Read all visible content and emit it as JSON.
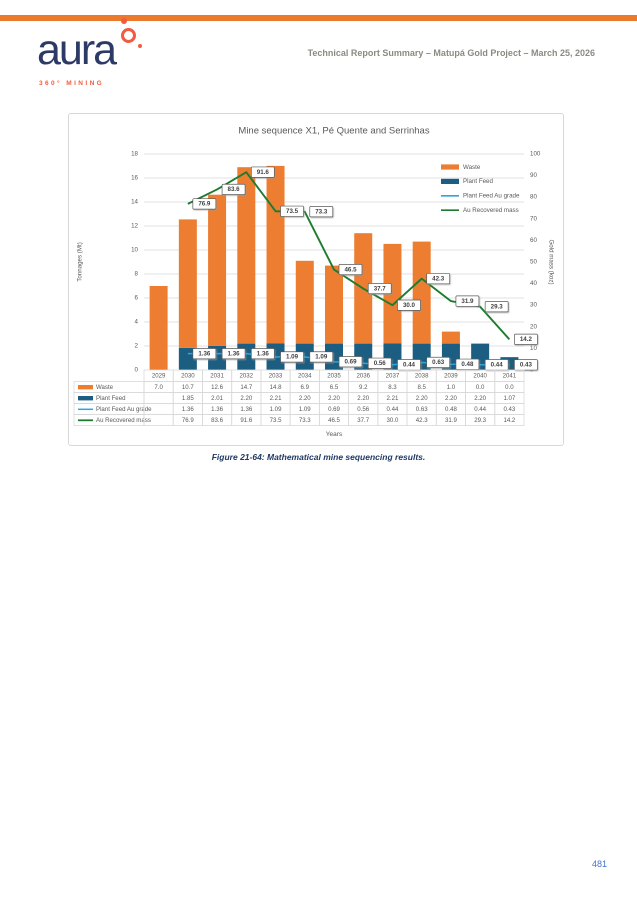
{
  "colors": {
    "accent_orange": "#EC7A2D",
    "logo_navy": "#2D3A66",
    "logo_orange": "#F15B40",
    "header_title_gray": "#8B8B82",
    "caption_navy": "#1F3864",
    "page_number_blue": "#4472C4",
    "chart_text_gray": "#595959",
    "grid_gray": "#D9D9D9"
  },
  "header": {
    "logo_word": "aura",
    "logo_tagline": "360° MINING",
    "title": "Technical Report Summary – Matupá Gold Project – March 25, 2026"
  },
  "figure_caption": "Figure 21-64: Mathematical mine sequencing results.",
  "page_number": "481",
  "chart_data": {
    "type": "combo: stacked bar + line, dual axis",
    "title": "Mine sequence X1, Pé Quente and Serrinhas",
    "xlabel": "Years",
    "ylabel_left": "Tonnages (Mt)",
    "ylabel_right": "Gold mass (koz)",
    "ylim_left": [
      0,
      18
    ],
    "ytick_step_left": 2,
    "ylim_right": [
      0,
      100
    ],
    "ytick_step_right": 10,
    "grid": "horizontal gridlines on left axis",
    "legend_position": "inside top-right",
    "categories": [
      "2029",
      "2030",
      "2031",
      "2032",
      "2033",
      "2034",
      "2035",
      "2036",
      "2037",
      "2038",
      "2039",
      "2040",
      "2041"
    ],
    "series": [
      {
        "name": "Waste",
        "type": "bar",
        "stack": "tonnage",
        "stack_level": 1,
        "axis": "left",
        "color": "#ED7D31",
        "values": [
          7.0,
          10.7,
          12.6,
          14.7,
          14.8,
          6.9,
          6.5,
          9.2,
          8.3,
          8.5,
          1.0,
          0.0,
          0.0
        ],
        "table_values": [
          "7.0",
          "10.7",
          "12.6",
          "14.7",
          "14.8",
          "6.9",
          "6.5",
          "9.2",
          "8.3",
          "8.5",
          "1.0",
          "0.0",
          "0.0"
        ]
      },
      {
        "name": "Plant Feed",
        "type": "bar",
        "stack": "tonnage",
        "stack_level": 0,
        "axis": "left",
        "color": "#1B5E82",
        "values": [
          null,
          1.85,
          2.01,
          2.2,
          2.21,
          2.2,
          2.2,
          2.2,
          2.21,
          2.2,
          2.2,
          2.2,
          1.07
        ],
        "table_values": [
          "",
          "1.85",
          "2.01",
          "2.20",
          "2.21",
          "2.20",
          "2.20",
          "2.20",
          "2.21",
          "2.20",
          "2.20",
          "2.20",
          "1.07"
        ]
      },
      {
        "name": "Plant Feed Au grade",
        "type": "line",
        "axis": "left",
        "color": "#29A7E1",
        "data_labels": true,
        "values": [
          null,
          1.36,
          1.36,
          1.36,
          1.09,
          1.09,
          0.69,
          0.56,
          0.44,
          0.63,
          0.48,
          0.44,
          0.43
        ],
        "table_values": [
          "",
          "1.36",
          "1.36",
          "1.36",
          "1.09",
          "1.09",
          "0.69",
          "0.56",
          "0.44",
          "0.63",
          "0.48",
          "0.44",
          "0.43"
        ]
      },
      {
        "name": "Au Recovered mass",
        "type": "line",
        "axis": "right",
        "color": "#1E7B2F",
        "data_labels": true,
        "values": [
          null,
          76.9,
          83.6,
          91.6,
          73.5,
          73.3,
          46.5,
          37.7,
          30.0,
          42.3,
          31.9,
          29.3,
          14.2
        ],
        "table_values": [
          "",
          "76.9",
          "83.6",
          "91.6",
          "73.5",
          "73.3",
          "46.5",
          "37.7",
          "30.0",
          "42.3",
          "31.9",
          "29.3",
          "14.2"
        ]
      }
    ]
  }
}
